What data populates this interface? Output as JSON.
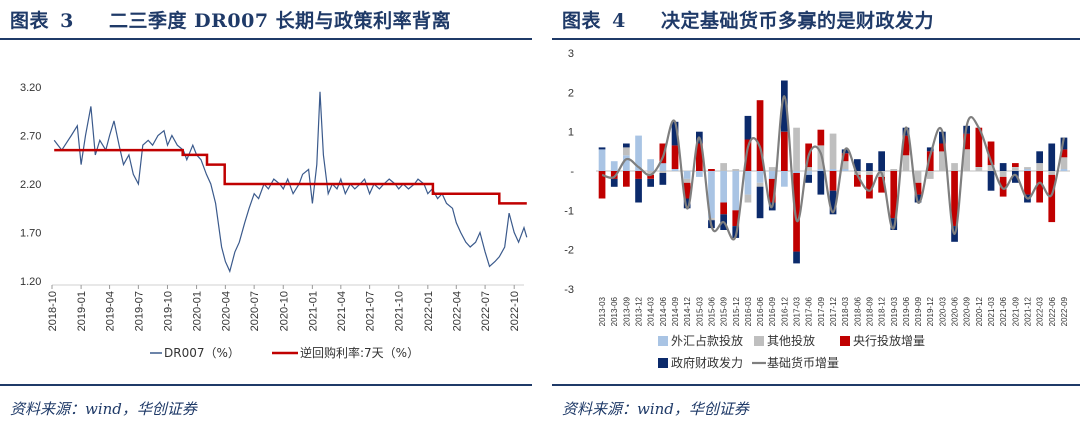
{
  "left": {
    "title_prefix": "图表",
    "title_num": "3",
    "title_text": "二三季度 DR007 长期与政策利率背离",
    "source": "资料来源：wind，华创证券"
  },
  "right": {
    "title_prefix": "图表",
    "title_num": "4",
    "title_text": "决定基础货币多寡的是财政发力",
    "source": "资料来源：wind，华创证券"
  },
  "colors": {
    "navy": "#1f3a68",
    "dr007": "#3b5a8c",
    "policy": "#c00000",
    "fx": "#a9c4e4",
    "other": "#bfbfbf",
    "pboc": "#c00000",
    "fiscal": "#0b2a6b",
    "base": "#7f7f7f"
  },
  "chart_data": [
    {
      "type": "line",
      "title": "二三季度 DR007 长期与政策利率背离",
      "x_start": "2018-10",
      "x_end": "2022-11",
      "x_ticks": [
        "2018-10",
        "2019-01",
        "2019-04",
        "2019-07",
        "2019-10",
        "2020-01",
        "2020-04",
        "2020-07",
        "2020-10",
        "2021-01",
        "2021-04",
        "2021-07",
        "2021-10",
        "2022-01",
        "2022-04",
        "2022-07",
        "2022-10"
      ],
      "y_ticks": [
        "3.20",
        "2.70",
        "2.20",
        "1.70",
        "1.20"
      ],
      "ylim": [
        1.2,
        3.2
      ],
      "series": [
        {
          "name": "DR007（%）",
          "style": "line",
          "points": [
            [
              "2018-10-08",
              2.65
            ],
            [
              "2018-10-20",
              2.6
            ],
            [
              "2018-11-01",
              2.55
            ],
            [
              "2018-11-15",
              2.62
            ],
            [
              "2018-12-01",
              2.7
            ],
            [
              "2018-12-20",
              2.8
            ],
            [
              "2019-01-01",
              2.4
            ],
            [
              "2019-01-15",
              2.7
            ],
            [
              "2019-02-01",
              3.0
            ],
            [
              "2019-02-15",
              2.5
            ],
            [
              "2019-03-01",
              2.65
            ],
            [
              "2019-03-20",
              2.55
            ],
            [
              "2019-04-01",
              2.7
            ],
            [
              "2019-04-15",
              2.85
            ],
            [
              "2019-05-01",
              2.6
            ],
            [
              "2019-05-15",
              2.4
            ],
            [
              "2019-06-01",
              2.5
            ],
            [
              "2019-06-15",
              2.3
            ],
            [
              "2019-07-01",
              2.2
            ],
            [
              "2019-07-15",
              2.6
            ],
            [
              "2019-08-01",
              2.65
            ],
            [
              "2019-08-15",
              2.6
            ],
            [
              "2019-09-01",
              2.7
            ],
            [
              "2019-09-20",
              2.75
            ],
            [
              "2019-10-01",
              2.6
            ],
            [
              "2019-10-15",
              2.7
            ],
            [
              "2019-11-01",
              2.6
            ],
            [
              "2019-11-20",
              2.55
            ],
            [
              "2019-12-01",
              2.45
            ],
            [
              "2019-12-20",
              2.6
            ],
            [
              "2020-01-01",
              2.5
            ],
            [
              "2020-01-15",
              2.45
            ],
            [
              "2020-02-01",
              2.3
            ],
            [
              "2020-02-15",
              2.2
            ],
            [
              "2020-03-01",
              2.0
            ],
            [
              "2020-03-20",
              1.55
            ],
            [
              "2020-04-01",
              1.4
            ],
            [
              "2020-04-15",
              1.3
            ],
            [
              "2020-05-01",
              1.5
            ],
            [
              "2020-05-15",
              1.6
            ],
            [
              "2020-06-01",
              1.8
            ],
            [
              "2020-06-15",
              1.95
            ],
            [
              "2020-07-01",
              2.1
            ],
            [
              "2020-07-15",
              2.05
            ],
            [
              "2020-08-01",
              2.2
            ],
            [
              "2020-08-15",
              2.15
            ],
            [
              "2020-09-01",
              2.25
            ],
            [
              "2020-09-20",
              2.2
            ],
            [
              "2020-10-01",
              2.15
            ],
            [
              "2020-10-15",
              2.25
            ],
            [
              "2020-11-01",
              2.1
            ],
            [
              "2020-11-20",
              2.2
            ],
            [
              "2020-12-01",
              2.3
            ],
            [
              "2020-12-20",
              2.35
            ],
            [
              "2021-01-01",
              2.0
            ],
            [
              "2021-01-15",
              2.4
            ],
            [
              "2021-01-25",
              3.15
            ],
            [
              "2021-02-05",
              2.5
            ],
            [
              "2021-02-20",
              2.1
            ],
            [
              "2021-03-05",
              2.2
            ],
            [
              "2021-03-20",
              2.15
            ],
            [
              "2021-04-01",
              2.25
            ],
            [
              "2021-04-15",
              2.1
            ],
            [
              "2021-05-01",
              2.2
            ],
            [
              "2021-05-15",
              2.15
            ],
            [
              "2021-06-01",
              2.2
            ],
            [
              "2021-06-15",
              2.25
            ],
            [
              "2021-07-01",
              2.1
            ],
            [
              "2021-07-15",
              2.2
            ],
            [
              "2021-08-01",
              2.15
            ],
            [
              "2021-08-15",
              2.2
            ],
            [
              "2021-09-01",
              2.25
            ],
            [
              "2021-09-20",
              2.2
            ],
            [
              "2021-10-01",
              2.15
            ],
            [
              "2021-10-15",
              2.2
            ],
            [
              "2021-11-01",
              2.15
            ],
            [
              "2021-11-20",
              2.2
            ],
            [
              "2021-12-01",
              2.25
            ],
            [
              "2021-12-20",
              2.2
            ],
            [
              "2022-01-01",
              2.1
            ],
            [
              "2022-01-15",
              2.15
            ],
            [
              "2022-02-01",
              2.05
            ],
            [
              "2022-02-15",
              2.1
            ],
            [
              "2022-03-01",
              2.0
            ],
            [
              "2022-03-20",
              1.95
            ],
            [
              "2022-04-01",
              1.8
            ],
            [
              "2022-04-15",
              1.7
            ],
            [
              "2022-05-01",
              1.6
            ],
            [
              "2022-05-15",
              1.55
            ],
            [
              "2022-06-01",
              1.6
            ],
            [
              "2022-06-15",
              1.7
            ],
            [
              "2022-07-01",
              1.5
            ],
            [
              "2022-07-15",
              1.35
            ],
            [
              "2022-08-01",
              1.4
            ],
            [
              "2022-08-15",
              1.45
            ],
            [
              "2022-09-01",
              1.55
            ],
            [
              "2022-09-15",
              1.9
            ],
            [
              "2022-10-01",
              1.7
            ],
            [
              "2022-10-15",
              1.6
            ],
            [
              "2022-11-01",
              1.75
            ],
            [
              "2022-11-10",
              1.65
            ]
          ]
        },
        {
          "name": "逆回购利率:7天（%）",
          "style": "step",
          "points": [
            [
              "2018-10-08",
              2.55
            ],
            [
              "2019-11-18",
              2.5
            ],
            [
              "2020-02-03",
              2.4
            ],
            [
              "2020-03-30",
              2.2
            ],
            [
              "2022-01-17",
              2.1
            ],
            [
              "2022-08-15",
              2.0
            ],
            [
              "2022-11-10",
              2.0
            ]
          ]
        }
      ]
    },
    {
      "type": "bar",
      "title": "决定基础货币多寡的是财政发力",
      "categories": [
        "2013-03",
        "2013-06",
        "2013-09",
        "2013-12",
        "2014-03",
        "2014-06",
        "2014-09",
        "2014-12",
        "2015-03",
        "2015-06",
        "2015-09",
        "2015-12",
        "2016-03",
        "2016-06",
        "2016-09",
        "2016-12",
        "2017-03",
        "2017-06",
        "2017-09",
        "2017-12",
        "2018-03",
        "2018-06",
        "2018-09",
        "2018-12",
        "2019-03",
        "2019-06",
        "2019-09",
        "2019-12",
        "2020-03",
        "2020-06",
        "2020-09",
        "2020-12",
        "2021-03",
        "2021-06",
        "2021-09",
        "2021-12",
        "2022-03",
        "2022-06",
        "2022-09"
      ],
      "y_ticks": [
        "3",
        "2",
        "1",
        "-",
        "-1",
        "-2",
        "-3"
      ],
      "ylim": [
        -3,
        3
      ],
      "stacked": true,
      "series": [
        {
          "name": "外汇占款投放",
          "type": "bar",
          "values": [
            0.55,
            0.25,
            0.4,
            0.9,
            0.3,
            0.2,
            0.05,
            -0.2,
            -0.15,
            -1.2,
            -0.8,
            -1.0,
            -0.6,
            -0.3,
            -0.2,
            -0.4,
            -0.05,
            -0.1,
            0.05,
            0.05,
            0.05,
            0.0,
            0.0,
            0.0,
            0.0,
            0.0,
            0.0,
            0.0,
            0.0,
            0.0,
            0.0,
            0.0,
            0.0,
            0.0,
            0.0,
            0.05,
            0.0,
            0.0,
            0.05
          ]
        },
        {
          "name": "其他投放",
          "type": "bar",
          "values": [
            0.0,
            0.0,
            0.2,
            0.0,
            -0.1,
            -0.05,
            0.0,
            -0.1,
            0.0,
            -0.05,
            0.2,
            0.05,
            -0.2,
            -0.1,
            0.1,
            0.0,
            1.1,
            0.1,
            0.6,
            0.9,
            0.2,
            -0.1,
            -0.1,
            -0.15,
            0.05,
            0.4,
            -0.3,
            -0.2,
            0.5,
            0.2,
            0.55,
            0.1,
            0.15,
            -0.15,
            0.1,
            0.05,
            0.2,
            -0.1,
            0.3
          ]
        },
        {
          "name": "央行投放增量",
          "type": "bar",
          "values": [
            -0.7,
            -0.2,
            -0.4,
            -0.2,
            -0.1,
            0.5,
            0.6,
            -0.4,
            0.7,
            0.05,
            -0.3,
            -0.4,
            0.8,
            1.8,
            -0.6,
            1.0,
            -2.0,
            0.6,
            0.4,
            -0.5,
            0.2,
            -0.3,
            -0.6,
            -0.4,
            -1.2,
            0.5,
            -0.3,
            0.5,
            0.2,
            -1.4,
            0.4,
            1.0,
            0.6,
            -0.5,
            0.1,
            -0.6,
            -0.8,
            -1.2,
            0.2
          ]
        },
        {
          "name": "政府财政发力",
          "type": "bar",
          "values": [
            0.05,
            -0.2,
            0.1,
            -0.6,
            -0.2,
            -0.3,
            0.6,
            -0.25,
            0.3,
            -0.2,
            -0.4,
            -0.3,
            0.6,
            -0.8,
            -0.2,
            1.3,
            -0.3,
            -0.2,
            -0.6,
            -0.6,
            0.1,
            0.3,
            0.2,
            0.5,
            -0.3,
            0.2,
            -0.2,
            0.1,
            0.3,
            -0.4,
            0.2,
            0.0,
            -0.5,
            0.2,
            -0.3,
            -0.2,
            0.3,
            0.7,
            0.3
          ]
        },
        {
          "name": "基础货币增量",
          "type": "line",
          "values": [
            -0.1,
            -0.15,
            0.3,
            0.1,
            -0.1,
            0.35,
            1.25,
            -0.95,
            0.85,
            -1.4,
            -1.3,
            -1.65,
            0.6,
            0.6,
            -0.9,
            1.9,
            -1.25,
            0.4,
            0.45,
            -1.05,
            0.55,
            -0.1,
            -0.5,
            -0.05,
            -1.45,
            1.1,
            -0.8,
            0.4,
            1.0,
            -1.6,
            1.15,
            1.1,
            0.25,
            -0.45,
            -0.1,
            -0.7,
            -0.3,
            -0.6,
            0.85
          ]
        }
      ],
      "legend": [
        "外汇占款投放",
        "其他投放",
        "央行投放增量",
        "政府财政发力",
        "基础货币增量"
      ]
    }
  ]
}
